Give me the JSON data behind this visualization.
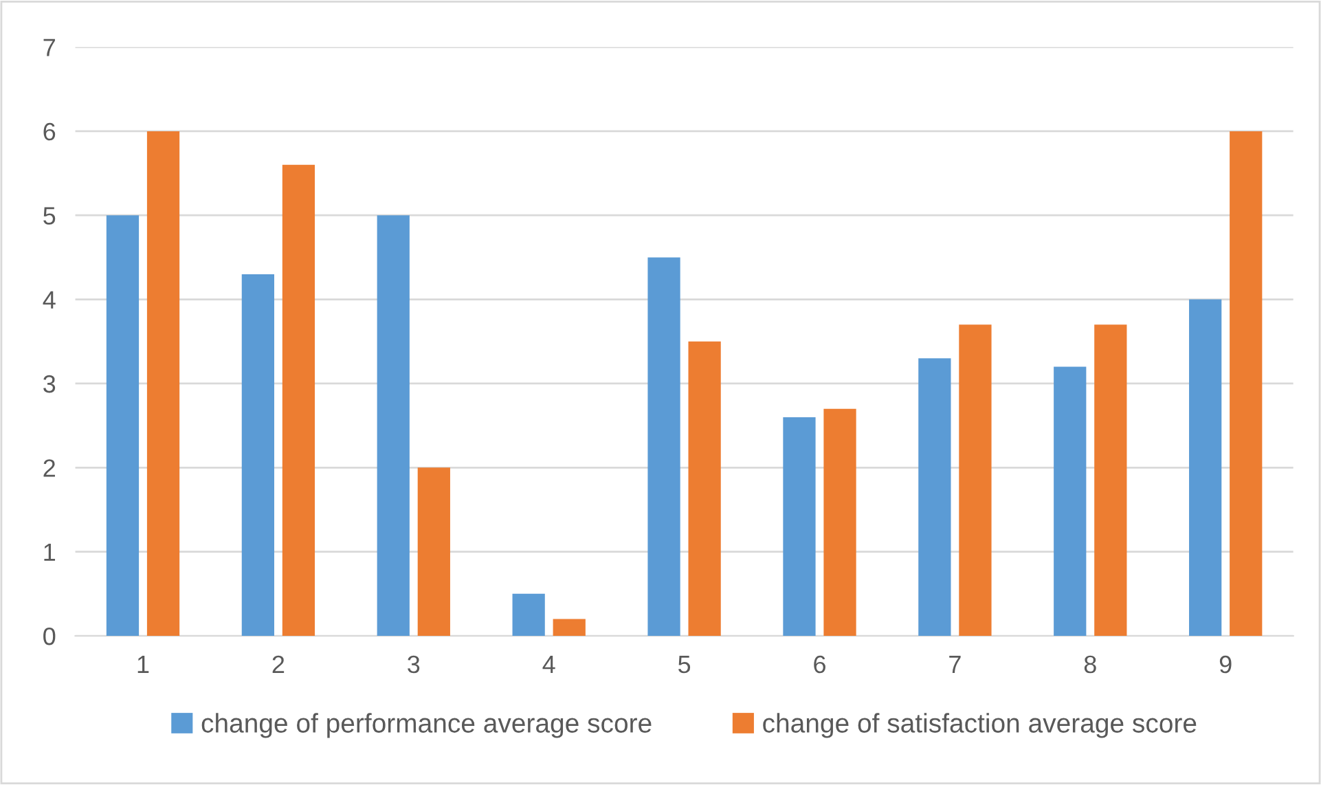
{
  "chart_data": {
    "type": "bar",
    "categories": [
      "1",
      "2",
      "3",
      "4",
      "5",
      "6",
      "7",
      "8",
      "9"
    ],
    "series": [
      {
        "name": "change of performance average score",
        "color": "#5b9bd5",
        "values": [
          5,
          4.3,
          5,
          0.5,
          4.5,
          2.6,
          3.3,
          3.2,
          4.0
        ]
      },
      {
        "name": "change of satisfaction average score",
        "color": "#ed7d31",
        "values": [
          6,
          5.6,
          2,
          0.2,
          3.5,
          2.7,
          3.7,
          3.7,
          6
        ]
      }
    ],
    "ylim": [
      0,
      7
    ],
    "yticks": [
      0,
      1,
      2,
      3,
      4,
      5,
      6,
      7
    ],
    "grid": "y",
    "legend": "bottom"
  }
}
